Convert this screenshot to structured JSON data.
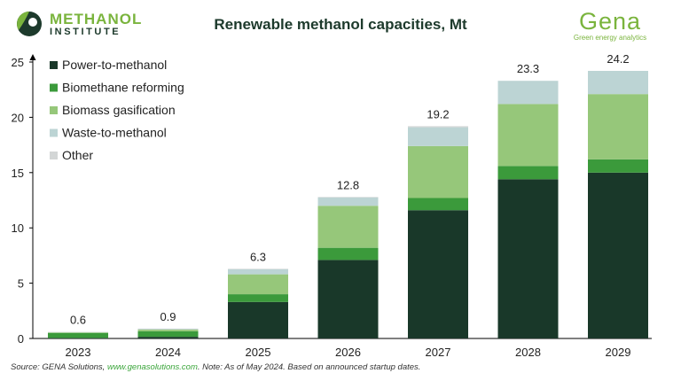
{
  "header": {
    "title": "Renewable methanol capacities, Mt",
    "left_logo": {
      "name": "METHANOL",
      "sub": "INSTITUTE"
    },
    "right_logo": {
      "name": "Gena",
      "sub": "Green energy analytics"
    }
  },
  "footer": {
    "prefix": "Source: GENA Solutions, ",
    "link": "www.genasolutions.com",
    "suffix": ". Note: As of May 2024. Based on announced startup dates."
  },
  "colors": {
    "power": "#193829",
    "biomethane": "#3b9a3b",
    "biomass": "#96c77a",
    "waste": "#bcd4d4",
    "other": "#d3d6d6"
  },
  "chart_data": {
    "type": "bar",
    "stacked": true,
    "title": "Renewable methanol capacities, Mt",
    "categories": [
      "2023",
      "2024",
      "2025",
      "2026",
      "2027",
      "2028",
      "2029"
    ],
    "series": [
      {
        "name": "Power-to-methanol",
        "color_key": "power",
        "values": [
          0.05,
          0.15,
          3.3,
          7.1,
          11.6,
          14.4,
          15.0
        ]
      },
      {
        "name": "Biomethane reforming",
        "color_key": "biomethane",
        "values": [
          0.45,
          0.5,
          0.7,
          1.1,
          1.1,
          1.2,
          1.2
        ]
      },
      {
        "name": "Biomass gasification",
        "color_key": "biomass",
        "values": [
          0.05,
          0.15,
          1.8,
          3.8,
          4.7,
          5.6,
          5.9
        ]
      },
      {
        "name": "Waste-to-methanol",
        "color_key": "waste",
        "values": [
          0.03,
          0.05,
          0.45,
          0.75,
          1.7,
          2.1,
          2.1
        ]
      },
      {
        "name": "Other",
        "color_key": "other",
        "values": [
          0.02,
          0.05,
          0.05,
          0.05,
          0.1,
          0.0,
          0.0
        ]
      }
    ],
    "totals": [
      "0.6",
      "0.9",
      "6.3",
      "12.8",
      "19.2",
      "23.3",
      "24.2"
    ],
    "ylim": [
      0,
      25
    ],
    "yticks": [
      0,
      5,
      10,
      15,
      20,
      25
    ],
    "xlabel": "",
    "ylabel": "",
    "grid": false,
    "legend_position": "top-left"
  }
}
